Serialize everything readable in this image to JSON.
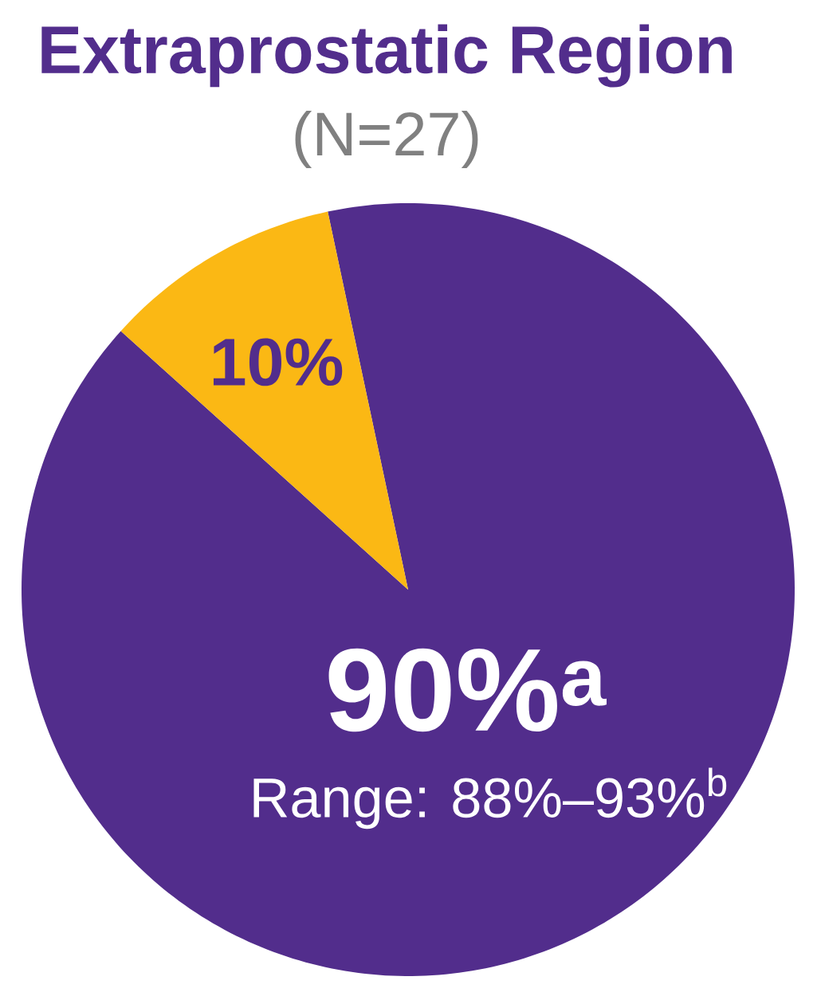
{
  "chart_data": {
    "type": "pie",
    "title": "Extraprostatic Region",
    "subtitle": "(N=27)",
    "categories": [
      null,
      null
    ],
    "values": [
      90,
      10
    ],
    "colors": [
      "#522d8c",
      "#fbb814"
    ],
    "value_labels": [
      "90%$^{a}$",
      "10%"
    ],
    "annotations": [
      "Range: 88%–93%$^{b}$"
    ]
  }
}
